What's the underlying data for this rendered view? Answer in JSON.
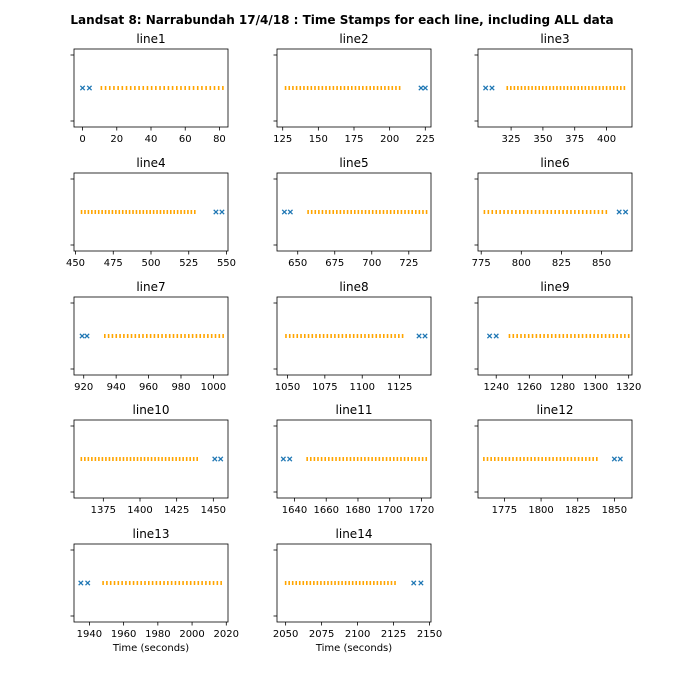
{
  "title": "Landsat 8: Narrabundah 17/4/18 : Time Stamps for each line, including ALL data",
  "colors": {
    "orange": "#ffa500",
    "blue": "#1f77b4"
  },
  "chart_data": [
    {
      "type": "scatter",
      "title": "line1",
      "xlim": [
        -5,
        85
      ],
      "xticks": [
        0,
        20,
        40,
        60,
        80
      ],
      "xlabel": "",
      "orange_start": 11,
      "orange_end": 82,
      "orange_count": 30,
      "blue": [
        0,
        4
      ]
    },
    {
      "type": "scatter",
      "title": "line2",
      "xlim": [
        121,
        229
      ],
      "xticks": [
        125,
        150,
        175,
        200,
        225
      ],
      "xlabel": "",
      "orange_start": 127,
      "orange_end": 207,
      "orange_count": 32,
      "blue": [
        222,
        225
      ]
    },
    {
      "type": "scatter",
      "title": "line3",
      "xlim": [
        299,
        420
      ],
      "xticks": [
        325,
        350,
        375,
        400
      ],
      "xlabel": "",
      "orange_start": 322,
      "orange_end": 414,
      "orange_count": 34,
      "blue": [
        305,
        310
      ]
    },
    {
      "type": "scatter",
      "title": "line4",
      "xlim": [
        449,
        551
      ],
      "xticks": [
        450,
        475,
        500,
        525,
        550
      ],
      "xlabel": "",
      "orange_start": 454,
      "orange_end": 529,
      "orange_count": 34,
      "blue": [
        543,
        547
      ]
    },
    {
      "type": "scatter",
      "title": "line5",
      "xlim": [
        636,
        740
      ],
      "xticks": [
        650,
        675,
        700,
        725
      ],
      "xlabel": "",
      "orange_start": 657,
      "orange_end": 737,
      "orange_count": 34,
      "blue": [
        641,
        645
      ]
    },
    {
      "type": "scatter",
      "title": "line6",
      "xlim": [
        773,
        869
      ],
      "xticks": [
        775,
        800,
        825,
        850
      ],
      "xlabel": "",
      "orange_start": 777,
      "orange_end": 853,
      "orange_count": 32,
      "blue": [
        861,
        865
      ]
    },
    {
      "type": "scatter",
      "title": "line7",
      "xlim": [
        914,
        1009
      ],
      "xticks": [
        920,
        940,
        960,
        980,
        1000
      ],
      "xlabel": "",
      "orange_start": 933,
      "orange_end": 1006,
      "orange_count": 32,
      "blue": [
        919,
        922
      ]
    },
    {
      "type": "scatter",
      "title": "line8",
      "xlim": [
        1043,
        1146
      ],
      "xticks": [
        1050,
        1075,
        1100,
        1125
      ],
      "xlabel": "",
      "orange_start": 1049,
      "orange_end": 1127,
      "orange_count": 32,
      "blue": [
        1138,
        1142
      ]
    },
    {
      "type": "scatter",
      "title": "line9",
      "xlim": [
        1229,
        1322
      ],
      "xticks": [
        1240,
        1260,
        1280,
        1300,
        1320
      ],
      "xlabel": "",
      "orange_start": 1248,
      "orange_end": 1320,
      "orange_count": 32,
      "blue": [
        1236,
        1240
      ]
    },
    {
      "type": "scatter",
      "title": "line10",
      "xlim": [
        1355,
        1460
      ],
      "xticks": [
        1375,
        1400,
        1425,
        1450
      ],
      "xlabel": "",
      "orange_start": 1360,
      "orange_end": 1439,
      "orange_count": 34,
      "blue": [
        1451,
        1455
      ]
    },
    {
      "type": "scatter",
      "title": "line11",
      "xlim": [
        1629,
        1726
      ],
      "xticks": [
        1640,
        1660,
        1680,
        1700,
        1720
      ],
      "xlabel": "",
      "orange_start": 1648,
      "orange_end": 1723,
      "orange_count": 34,
      "blue": [
        1633,
        1637
      ]
    },
    {
      "type": "scatter",
      "title": "line12",
      "xlim": [
        1757,
        1862
      ],
      "xticks": [
        1775,
        1800,
        1825,
        1850
      ],
      "xlabel": "",
      "orange_start": 1761,
      "orange_end": 1838,
      "orange_count": 32,
      "blue": [
        1850,
        1854
      ]
    },
    {
      "type": "scatter",
      "title": "line13",
      "xlim": [
        1931,
        2021
      ],
      "xticks": [
        1940,
        1960,
        1980,
        2000,
        2020
      ],
      "xlabel": "Time (seconds)",
      "orange_start": 1948,
      "orange_end": 2017,
      "orange_count": 32,
      "blue": [
        1935,
        1939
      ]
    },
    {
      "type": "scatter",
      "title": "line14",
      "xlim": [
        2044,
        2151
      ],
      "xticks": [
        2050,
        2075,
        2100,
        2125,
        2150
      ],
      "xlabel": "Time (seconds)",
      "orange_start": 2050,
      "orange_end": 2126,
      "orange_count": 32,
      "blue": [
        2139,
        2144
      ]
    }
  ]
}
